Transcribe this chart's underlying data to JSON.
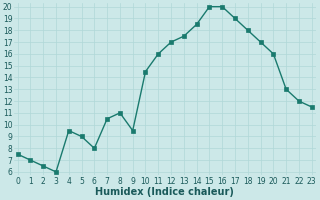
{
  "x": [
    0,
    1,
    2,
    3,
    4,
    5,
    6,
    7,
    8,
    9,
    10,
    11,
    12,
    13,
    14,
    15,
    16,
    17,
    18,
    19,
    20,
    21,
    22,
    23
  ],
  "y": [
    7.5,
    7.0,
    6.5,
    6.0,
    9.5,
    9.0,
    8.0,
    10.5,
    11.0,
    9.5,
    14.5,
    16.0,
    17.0,
    17.5,
    18.5,
    20.0,
    20.0,
    19.0,
    18.0,
    17.0,
    16.0,
    13.0,
    12.0,
    11.5
  ],
  "line_color": "#1a7a6e",
  "marker_color": "#1a7a6e",
  "bg_color": "#cce8e8",
  "grid_color": "#b0d8d8",
  "xlabel": "Humidex (Indice chaleur)",
  "ylim_min": 6,
  "ylim_max": 20,
  "xlim_min": 0,
  "xlim_max": 23,
  "yticks": [
    6,
    7,
    8,
    9,
    10,
    11,
    12,
    13,
    14,
    15,
    16,
    17,
    18,
    19,
    20
  ],
  "xticks": [
    0,
    1,
    2,
    3,
    4,
    5,
    6,
    7,
    8,
    9,
    10,
    11,
    12,
    13,
    14,
    15,
    16,
    17,
    18,
    19,
    20,
    21,
    22,
    23
  ],
  "tick_label_color": "#1a5a5a",
  "axis_label_color": "#1a5a5a",
  "line_width": 1.0,
  "marker_size": 2.5,
  "tick_fontsize": 5.5,
  "xlabel_fontsize": 7.0
}
